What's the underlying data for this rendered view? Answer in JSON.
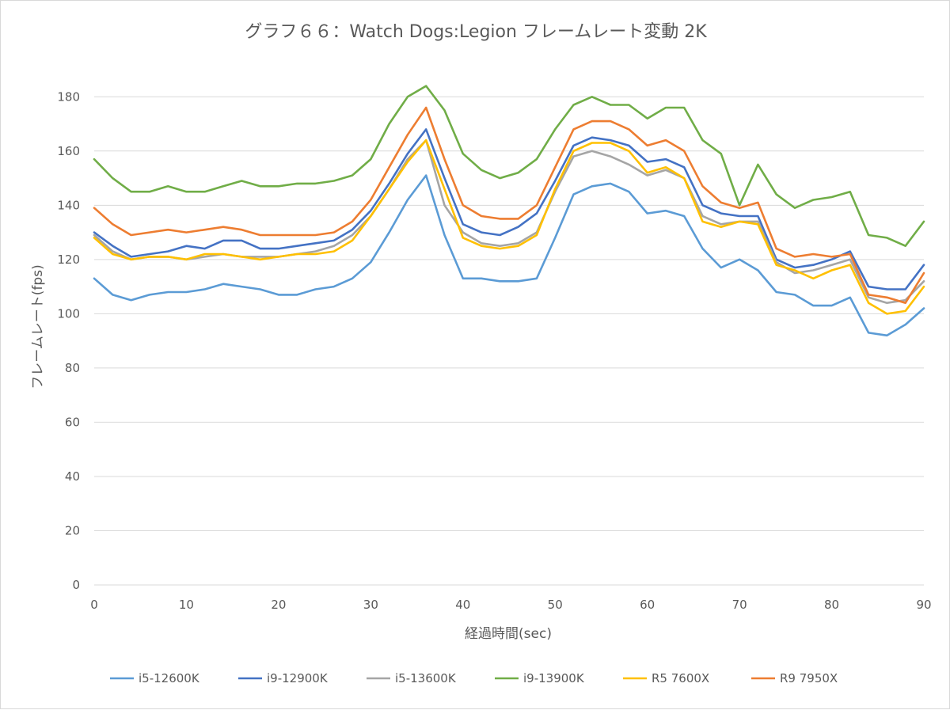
{
  "chart_data": {
    "type": "line",
    "title": "グラフ６６：Watch Dogs:Legion フレームレート変動 2K",
    "xlabel": "経過時間(sec)",
    "ylabel": "フレームレート(fps)",
    "xlim": [
      0,
      90
    ],
    "ylim": [
      0,
      190
    ],
    "xticks": [
      0,
      10,
      20,
      30,
      40,
      50,
      60,
      70,
      80,
      90
    ],
    "yticks": [
      0,
      20,
      40,
      60,
      80,
      100,
      120,
      140,
      160,
      180
    ],
    "grid": true,
    "legend_position": "bottom",
    "x": [
      0,
      2,
      4,
      6,
      8,
      10,
      12,
      14,
      16,
      18,
      20,
      22,
      24,
      26,
      28,
      30,
      32,
      34,
      36,
      38,
      40,
      42,
      44,
      46,
      48,
      50,
      52,
      54,
      56,
      58,
      60,
      62,
      64,
      66,
      68,
      70,
      72,
      74,
      76,
      78,
      80,
      82,
      84,
      86,
      88,
      90
    ],
    "series": [
      {
        "name": "i5-12600K",
        "color": "#5b9bd5",
        "values": [
          113,
          107,
          105,
          107,
          108,
          108,
          109,
          111,
          110,
          109,
          107,
          107,
          109,
          110,
          113,
          119,
          130,
          142,
          151,
          129,
          113,
          113,
          112,
          112,
          113,
          128,
          144,
          147,
          148,
          145,
          137,
          138,
          136,
          124,
          117,
          120,
          116,
          108,
          107,
          103,
          103,
          106,
          93,
          92,
          96,
          102
        ]
      },
      {
        "name": "i9-12900K",
        "color": "#4472c4",
        "values": [
          130,
          125,
          121,
          122,
          123,
          125,
          124,
          127,
          127,
          124,
          124,
          125,
          126,
          127,
          131,
          138,
          148,
          159,
          168,
          150,
          133,
          130,
          129,
          132,
          137,
          149,
          162,
          165,
          164,
          162,
          156,
          157,
          154,
          140,
          137,
          136,
          136,
          120,
          117,
          118,
          120,
          123,
          110,
          109,
          109,
          118
        ]
      },
      {
        "name": "i5-13600K",
        "color": "#a5a5a5",
        "values": [
          129,
          123,
          120,
          121,
          121,
          120,
          121,
          122,
          121,
          121,
          121,
          122,
          123,
          125,
          129,
          136,
          146,
          157,
          164,
          140,
          130,
          126,
          125,
          126,
          130,
          145,
          158,
          160,
          158,
          155,
          151,
          153,
          150,
          136,
          133,
          134,
          134,
          119,
          115,
          116,
          118,
          120,
          106,
          104,
          105,
          112
        ]
      },
      {
        "name": "i9-13900K",
        "color": "#70ad47",
        "values": [
          157,
          150,
          145,
          145,
          147,
          145,
          145,
          147,
          149,
          147,
          147,
          148,
          148,
          149,
          151,
          157,
          170,
          180,
          184,
          175,
          159,
          153,
          150,
          152,
          157,
          168,
          177,
          180,
          177,
          177,
          172,
          176,
          176,
          164,
          159,
          140,
          155,
          144,
          139,
          142,
          143,
          145,
          129,
          128,
          125,
          134
        ]
      },
      {
        "name": "R5 7600X",
        "color": "#ffc000",
        "values": [
          128,
          122,
          120,
          121,
          121,
          120,
          122,
          122,
          121,
          120,
          121,
          122,
          122,
          123,
          127,
          136,
          146,
          156,
          164,
          146,
          128,
          125,
          124,
          125,
          129,
          146,
          160,
          163,
          163,
          160,
          152,
          154,
          150,
          134,
          132,
          134,
          133,
          118,
          116,
          113,
          116,
          118,
          104,
          100,
          101,
          110
        ]
      },
      {
        "name": "R9 7950X",
        "color": "#ed7d31",
        "values": [
          139,
          133,
          129,
          130,
          131,
          130,
          131,
          132,
          131,
          129,
          129,
          129,
          129,
          130,
          134,
          142,
          154,
          166,
          176,
          157,
          140,
          136,
          135,
          135,
          140,
          154,
          168,
          171,
          171,
          168,
          162,
          164,
          160,
          147,
          141,
          139,
          141,
          124,
          121,
          122,
          121,
          122,
          107,
          106,
          104,
          115
        ]
      }
    ]
  }
}
